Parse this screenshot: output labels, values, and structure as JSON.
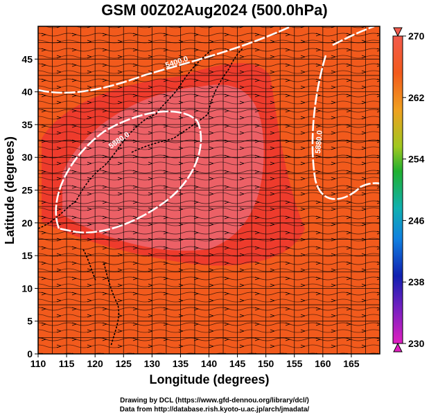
{
  "title": "GSM 00Z02Aug2024 (500.0hPa)",
  "footer": {
    "line1": "Drawing by DCL (https://www.gfd-dennou.org/library/dcl/)",
    "line2": "Data from http://database.rish.kyoto-u.ac.jp/arch/jmadata/"
  },
  "map": {
    "xlabel": "Longitude (degrees)",
    "ylabel": "Latitude  (degrees)",
    "lon_range": [
      110,
      170
    ],
    "lat_range": [
      0,
      50
    ],
    "lon_ticks": [
      "110",
      "115",
      "120",
      "125",
      "130",
      "135",
      "140",
      "145",
      "150",
      "155",
      "160",
      "165"
    ],
    "lat_ticks": [
      "0",
      "5",
      "10",
      "15",
      "20",
      "25",
      "30",
      "35",
      "40",
      "45"
    ],
    "contours": [
      {
        "label": "5400.0"
      },
      {
        "label": "5880.0"
      },
      {
        "label": "5880.0"
      }
    ],
    "field_colors": {
      "background": "#f25a1c",
      "warm": "#ee3b2c",
      "hot": "#ec6066",
      "contour": "#ffffff",
      "streamline": "#000000"
    }
  },
  "colorbar": {
    "ticks": [
      "270",
      "262",
      "254",
      "246",
      "238",
      "230"
    ],
    "range": [
      230,
      270
    ]
  }
}
